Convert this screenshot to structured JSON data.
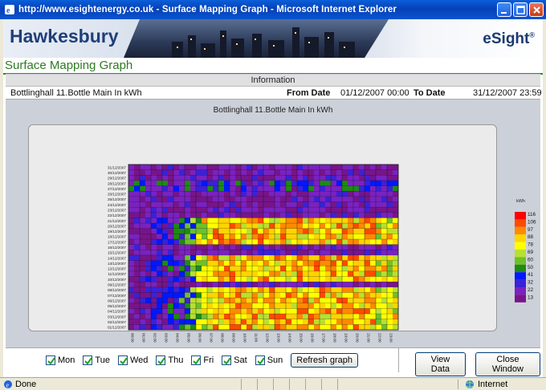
{
  "window": {
    "title": "http://www.esightenergy.co.uk - Surface Mapping Graph - Microsoft Internet Explorer"
  },
  "banner": {
    "brand": "Hawkesbury",
    "product": "eSight",
    "product_mark": "®"
  },
  "page": {
    "title": "Surface Mapping Graph"
  },
  "info": {
    "header": "Information",
    "meter": "Bottlinghall 11.Bottle Main In kWh",
    "from_label": "From Date",
    "from_value": "01/12/2007 00:00",
    "to_label": "To Date",
    "to_value": "31/12/2007 23:59"
  },
  "chart_data": {
    "type": "heatmap",
    "title": "Bottlinghall 11.Bottle Main In kWh",
    "colorbar_label": "kWh",
    "y_ticks": [
      "31/12/2007",
      "30/12/2007",
      "29/12/2007",
      "28/12/2007",
      "27/12/2007",
      "26/12/2007",
      "25/12/2007",
      "24/12/2007",
      "23/12/2007",
      "22/12/2007",
      "21/12/2007",
      "20/12/2007",
      "19/12/2007",
      "18/12/2007",
      "17/12/2007",
      "16/12/2007",
      "15/12/2007",
      "14/12/2007",
      "13/12/2007",
      "12/12/2007",
      "11/12/2007",
      "10/12/2007",
      "09/12/2007",
      "08/12/2007",
      "07/12/2007",
      "06/12/2007",
      "05/12/2007",
      "04/12/2007",
      "03/12/2007",
      "02/12/2007",
      "01/12/2007"
    ],
    "x_ticks": [
      "00:00",
      "01:00",
      "02:00",
      "03:00",
      "04:00",
      "05:00",
      "06:00",
      "07:00",
      "08:00",
      "09:00",
      "10:00",
      "11:00",
      "12:00",
      "13:00",
      "14:00",
      "15:00",
      "16:00",
      "17:00",
      "18:00",
      "19:00",
      "20:00",
      "21:00",
      "22:00",
      "23:00"
    ],
    "legend_levels": [
      116,
      106,
      97,
      88,
      78,
      69,
      60,
      50,
      41,
      32,
      22,
      13
    ],
    "legend_colors": [
      "#ff0000",
      "#ff4a00",
      "#ff8a00",
      "#ffd400",
      "#ffff00",
      "#b8e030",
      "#6fc028",
      "#1f8a14",
      "#0018ff",
      "#3b21d8",
      "#7a22c0",
      "#78148a"
    ],
    "band_days": [
      [
        "01/12/2007",
        "02/12/2007",
        "03/12/2007"
      ],
      [
        "04/12/2007",
        "05/12/2007",
        "06/12/2007",
        "07/12/2007",
        "08/12/2007"
      ],
      [
        "10/12/2007",
        "11/12/2007",
        "12/12/2007",
        "13/12/2007",
        "14/12/2007"
      ],
      [
        "17/12/2007",
        "18/12/2007",
        "19/12/2007",
        "20/12/2007",
        "21/12/2007"
      ],
      [
        "27/12/2007",
        "28/12/2007"
      ]
    ]
  },
  "filters": {
    "days": [
      {
        "label": "Mon",
        "checked": true
      },
      {
        "label": "Tue",
        "checked": true
      },
      {
        "label": "Wed",
        "checked": true
      },
      {
        "label": "Thu",
        "checked": true
      },
      {
        "label": "Fri",
        "checked": true
      },
      {
        "label": "Sat",
        "checked": true
      },
      {
        "label": "Sun",
        "checked": true
      }
    ],
    "refresh_label": "Refresh graph"
  },
  "actions": {
    "view_data_label": "View Data",
    "close_label": "Close Window"
  },
  "status": {
    "text": "Done",
    "zone": "Internet"
  }
}
